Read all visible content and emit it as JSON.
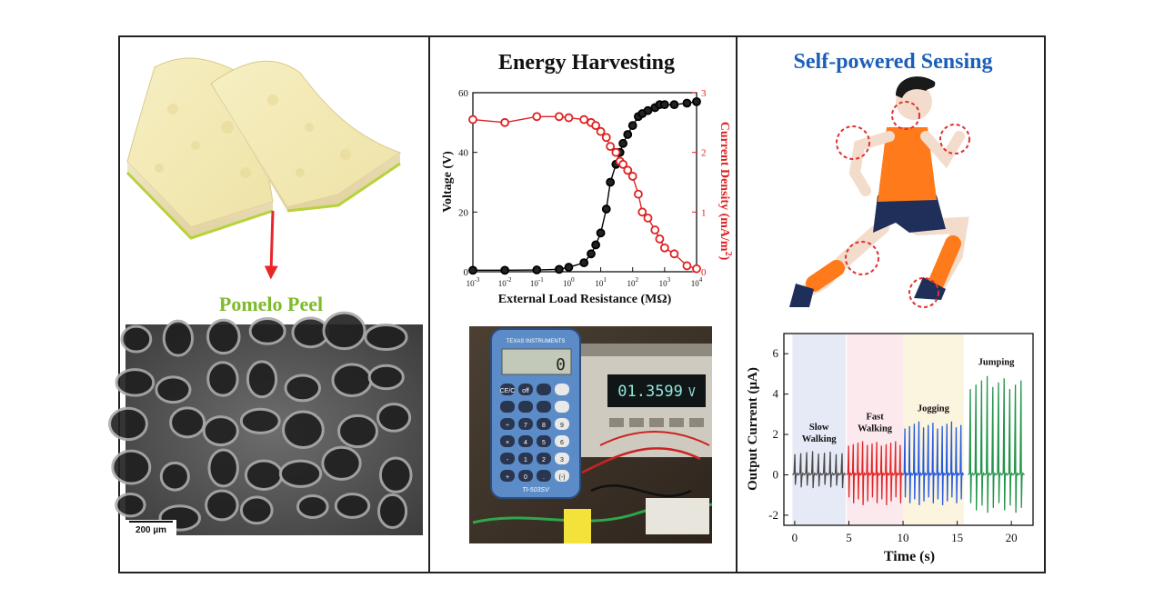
{
  "panels": {
    "left": {
      "material_label": "Pomelo Peel",
      "scale_bar_label": "200 µm",
      "colors": {
        "label": "#7dbb2b",
        "arrow": "#e8262a",
        "peel": "#f0e6b0",
        "rind": "#b7d23b"
      }
    },
    "middle": {
      "title": "Energy Harvesting",
      "display_reading": "01.3599",
      "display_unit": "V",
      "calculator_brand": "TEXAS INSTRUMENTS",
      "calculator_model": "TI-503SV",
      "calculator_display": "0",
      "calculator_keys": [
        "CE/C",
        "off",
        "",
        "",
        "",
        "",
        "",
        "",
        "÷",
        "7",
        "8",
        "9",
        "×",
        "4",
        "5",
        "6",
        "-",
        "1",
        "2",
        "3",
        "+",
        "0",
        ".",
        "(-)",
        "="
      ]
    },
    "right": {
      "title": "Self-powered Sensing",
      "colors": {
        "title": "#1c5fb8",
        "shirt": "#ff7a1a",
        "shorts": "#1f2f5a",
        "circles": "#e03030"
      }
    }
  },
  "chart_data": [
    {
      "type": "line",
      "xlabel": "External Load Resistance (MΩ)",
      "xscale": "log",
      "xlim": [
        0.001,
        10000
      ],
      "x_tick_labels": [
        "10-3",
        "10-2",
        "10-1",
        "100",
        "101",
        "102",
        "103",
        "104"
      ],
      "y_left": {
        "label": "Voltage (V)",
        "lim": [
          0,
          60
        ],
        "ticks": [
          0,
          20,
          40,
          60
        ],
        "color": "#000000"
      },
      "y_right": {
        "label": "Current Density (mA/m2)",
        "lim": [
          0,
          3
        ],
        "ticks": [
          0,
          1,
          2,
          3
        ],
        "color": "#e02020"
      },
      "series": [
        {
          "axis": "left",
          "color": "#000000",
          "x": [
            0.001,
            0.01,
            0.1,
            0.5,
            1,
            3,
            5,
            7,
            10,
            15,
            20,
            30,
            40,
            50,
            70,
            100,
            150,
            200,
            300,
            500,
            700,
            1000,
            2000,
            5000,
            10000
          ],
          "y": [
            0.5,
            0.5,
            0.6,
            0.8,
            1.5,
            3,
            6,
            9,
            13,
            21,
            30,
            36,
            40,
            43,
            46,
            49,
            52,
            53,
            54,
            55,
            56,
            56,
            56,
            56.5,
            57
          ]
        },
        {
          "axis": "right",
          "color": "#e02020",
          "x": [
            0.001,
            0.01,
            0.1,
            0.5,
            1,
            3,
            5,
            7,
            10,
            15,
            20,
            30,
            40,
            50,
            70,
            100,
            150,
            200,
            300,
            500,
            700,
            1000,
            2000,
            5000,
            10000
          ],
          "y": [
            2.55,
            2.5,
            2.6,
            2.6,
            2.58,
            2.55,
            2.5,
            2.45,
            2.35,
            2.25,
            2.1,
            2.0,
            1.85,
            1.8,
            1.7,
            1.6,
            1.3,
            1.0,
            0.9,
            0.7,
            0.55,
            0.4,
            0.3,
            0.1,
            0.05
          ]
        }
      ]
    },
    {
      "type": "line",
      "xlabel": "Time (s)",
      "ylabel": "Output Current (μA)",
      "xlim": [
        -1,
        22
      ],
      "ylim": [
        -2.5,
        7
      ],
      "x_ticks": [
        0,
        5,
        10,
        15,
        20
      ],
      "y_ticks": [
        -2,
        0,
        2,
        4,
        6
      ],
      "segments": [
        {
          "label": "Slow\nWalking",
          "label_lines": [
            "Slow",
            "Walking"
          ],
          "t_range": [
            -0.2,
            4.7
          ],
          "bg": "#e6e9f6",
          "color": "#4a4a4a",
          "amp_pos": 1.2,
          "amp_neg": -0.7,
          "pulses": 9,
          "spike_up": 1.1
        },
        {
          "label": "Fast\nWalking",
          "label_lines": [
            "Fast",
            "Walking"
          ],
          "t_range": [
            4.8,
            10.0
          ],
          "bg": "#fbe9ee",
          "color": "#e02424",
          "amp_pos": 1.7,
          "amp_neg": -1.6,
          "pulses": 12,
          "spike_up": 1.7
        },
        {
          "label": "Jogging",
          "label_lines": [
            "Jogging"
          ],
          "t_range": [
            10.0,
            15.6
          ],
          "bg": "#fbf4de",
          "color": "#2459e0",
          "amp_pos": 2.7,
          "amp_neg": -1.6,
          "pulses": 13,
          "spike_up": 2.6
        },
        {
          "label": "Jumping",
          "label_lines": [
            "Jumping"
          ],
          "t_range": [
            16.0,
            21.2
          ],
          "bg": "#ffffff",
          "color": "#23944a",
          "amp_pos": 5.0,
          "amp_neg": -2.0,
          "pulses": 10,
          "spike_up": 5.0
        }
      ]
    }
  ]
}
